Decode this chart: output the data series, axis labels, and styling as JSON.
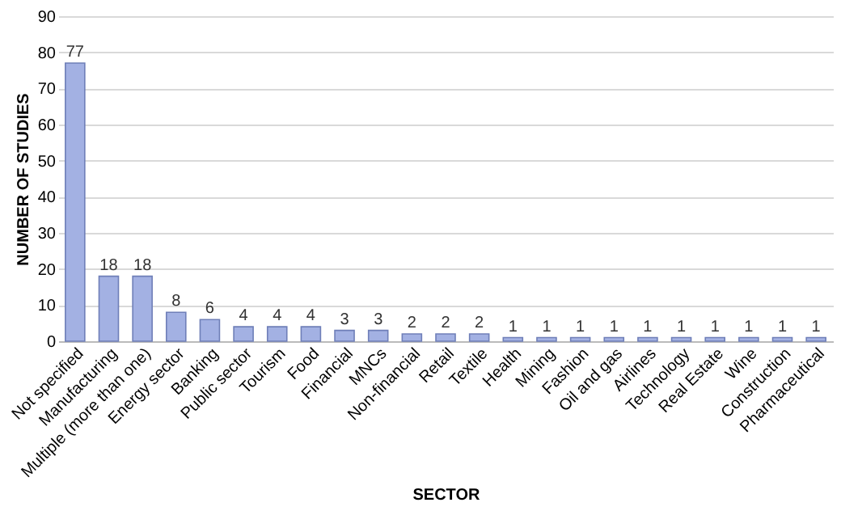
{
  "chart_data": {
    "type": "bar",
    "xlabel": "SECTOR",
    "ylabel": "NUMBER OF STUDIES",
    "categories": [
      "Not specified",
      "Manufacturing",
      "Multiple (more than one)",
      "Energy sector",
      "Banking",
      "Public sector",
      "Tourism",
      "Food",
      "Financial",
      "MNCs",
      "Non-financial",
      "Retail",
      "Textile",
      "Health",
      "Mining",
      "Fashion",
      "Oil and gas",
      "Airlines",
      "Technology",
      "Real Estate",
      "Wine",
      "Construction",
      "Pharmaceutical"
    ],
    "values": [
      77,
      18,
      18,
      8,
      6,
      4,
      4,
      4,
      3,
      3,
      2,
      2,
      2,
      1,
      1,
      1,
      1,
      1,
      1,
      1,
      1,
      1,
      1
    ],
    "color": "#a3b1e3",
    "ylim": [
      0,
      90
    ],
    "yticks": [
      0,
      10,
      20,
      30,
      40,
      50,
      60,
      70,
      80,
      90
    ],
    "grid": "y",
    "data_labels": true
  }
}
